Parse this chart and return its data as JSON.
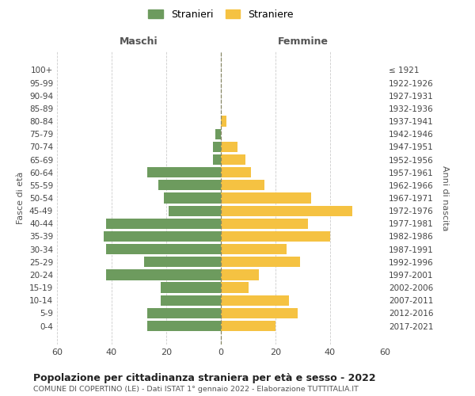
{
  "age_groups": [
    "0-4",
    "5-9",
    "10-14",
    "15-19",
    "20-24",
    "25-29",
    "30-34",
    "35-39",
    "40-44",
    "45-49",
    "50-54",
    "55-59",
    "60-64",
    "65-69",
    "70-74",
    "75-79",
    "80-84",
    "85-89",
    "90-94",
    "95-99",
    "100+"
  ],
  "birth_years": [
    "2017-2021",
    "2012-2016",
    "2007-2011",
    "2002-2006",
    "1997-2001",
    "1992-1996",
    "1987-1991",
    "1982-1986",
    "1977-1981",
    "1972-1976",
    "1967-1971",
    "1962-1966",
    "1957-1961",
    "1952-1956",
    "1947-1951",
    "1942-1946",
    "1937-1941",
    "1932-1936",
    "1927-1931",
    "1922-1926",
    "≤ 1921"
  ],
  "males": [
    27,
    27,
    22,
    22,
    42,
    28,
    42,
    43,
    42,
    19,
    21,
    23,
    27,
    3,
    3,
    2,
    0,
    0,
    0,
    0,
    0
  ],
  "females": [
    20,
    28,
    25,
    10,
    14,
    29,
    24,
    40,
    32,
    48,
    33,
    16,
    11,
    9,
    6,
    0,
    2,
    0,
    0,
    0,
    0
  ],
  "male_color": "#6d9b5e",
  "female_color": "#f5c242",
  "background_color": "#ffffff",
  "grid_color": "#cccccc",
  "title": "Popolazione per cittadinanza straniera per età e sesso - 2022",
  "subtitle": "COMUNE DI COPERTINO (LE) - Dati ISTAT 1° gennaio 2022 - Elaborazione TUTTITALIA.IT",
  "legend_male": "Stranieri",
  "legend_female": "Straniere",
  "xlabel_left": "Maschi",
  "xlabel_right": "Femmine",
  "ylabel_left": "Fasce di età",
  "ylabel_right": "Anni di nascita",
  "xlim": 60
}
